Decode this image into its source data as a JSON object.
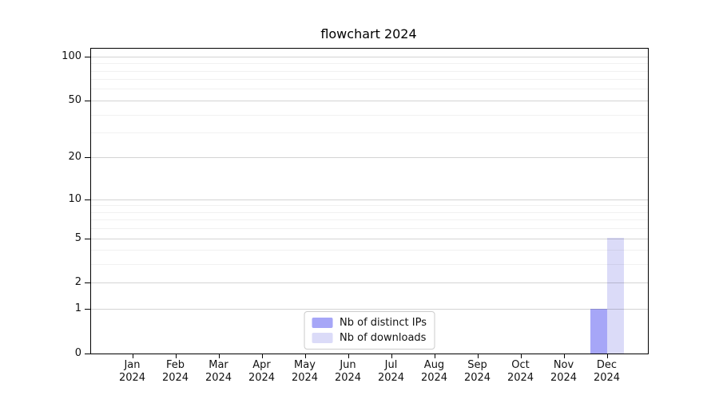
{
  "chart_data": {
    "type": "bar",
    "title": "flowchart 2024",
    "categories": [
      "Jan",
      "Feb",
      "Mar",
      "Apr",
      "May",
      "Jun",
      "Jul",
      "Aug",
      "Sep",
      "Oct",
      "Nov",
      "Dec"
    ],
    "category_year": "2024",
    "series": [
      {
        "name": "Nb of distinct IPs",
        "color": "#a6a6f7",
        "values": [
          0,
          0,
          0,
          0,
          0,
          0,
          0,
          0,
          0,
          0,
          0,
          1
        ]
      },
      {
        "name": "Nb of downloads",
        "color": "#dbdbf8",
        "values": [
          0,
          0,
          0,
          0,
          0,
          0,
          0,
          0,
          0,
          0,
          0,
          5
        ]
      }
    ],
    "yscale": "symlog-log1p",
    "ylim": [
      0,
      113
    ],
    "y_major_ticks": [
      0,
      1,
      2,
      5,
      10,
      20,
      50,
      100
    ],
    "y_minor_ticks": [
      3,
      4,
      6,
      7,
      8,
      9,
      30,
      40,
      60,
      70,
      80,
      90
    ],
    "grid": true,
    "legend_position": "lower center"
  },
  "colors": {
    "bar_distinct_ips": "#a6a6f7",
    "bar_downloads": "#dbdbf8",
    "grid_major": "#d6d6d6",
    "grid_minor": "#efefef",
    "axis": "#000000",
    "text": "#111111",
    "legend_border": "#cccccc",
    "background": "#ffffff"
  }
}
